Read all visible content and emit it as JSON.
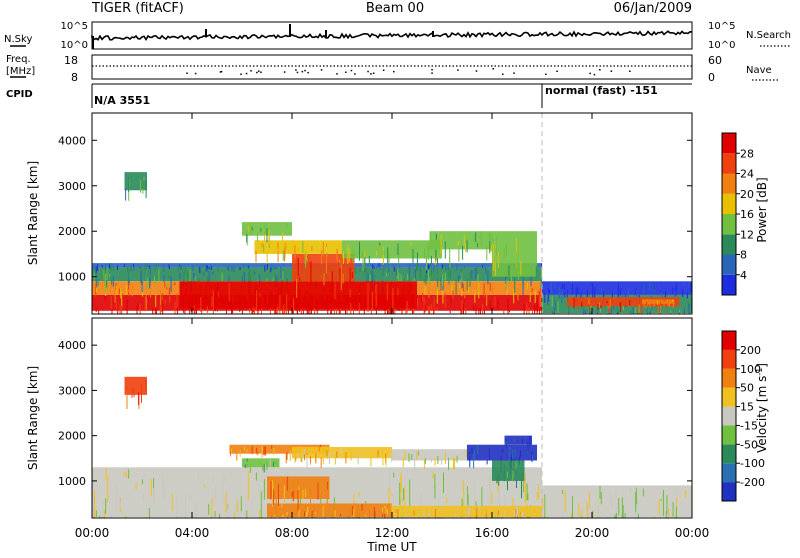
{
  "header": {
    "station": "TIGER (fitACF)",
    "beam": "Beam 00",
    "date": "06/Jan/2009"
  },
  "noise_panel": {
    "left_label": "N.Sky",
    "left_ticks": [
      "10^5",
      "10^0"
    ],
    "right_label": "N.Search",
    "right_ticks": [
      "10^5",
      "10^0"
    ]
  },
  "freq_panel": {
    "left_label_line1": "Freq.",
    "left_label_line2": "[MHz]",
    "left_ticks": [
      "18",
      "8"
    ],
    "right_label": "Nave",
    "right_ticks": [
      "60",
      "0"
    ]
  },
  "cpid_panel": {
    "label": "CPID",
    "segments": [
      {
        "text": "N/A 3551",
        "start_hour": 0
      },
      {
        "text": "normal (fast) -151",
        "start_hour": 18.0
      }
    ]
  },
  "time_axis": {
    "label": "Time UT",
    "ticks": [
      "00:00",
      "04:00",
      "08:00",
      "12:00",
      "16:00",
      "20:00",
      "00:00"
    ],
    "tick_hours": [
      0,
      4,
      8,
      12,
      16,
      20,
      24
    ],
    "range_hours": [
      0,
      24
    ]
  },
  "range_axis": {
    "label": "Slant Range [km]",
    "ticks": [
      "1000",
      "2000",
      "3000",
      "4000"
    ],
    "tick_values": [
      1000,
      2000,
      3000,
      4000
    ],
    "range_km": [
      180,
      4600
    ]
  },
  "mode_change_hour": 18.0,
  "power_scale": {
    "title": "Power [dB]",
    "labels": [
      "4",
      "8",
      "12",
      "16",
      "20",
      "24",
      "28"
    ],
    "colors": [
      "#1c2de0",
      "#2a66b8",
      "#2a8a5a",
      "#70c040",
      "#e8c000",
      "#f08010",
      "#f04010",
      "#e00000"
    ]
  },
  "velocity_scale": {
    "title_main": "Velocity [m s",
    "title_sup": "-1",
    "title_end": "]",
    "labels": [
      "200",
      "100",
      "50",
      "15",
      "-15",
      "-50",
      "-100",
      "-200"
    ],
    "colors": [
      "#2030c0",
      "#2a70b0",
      "#2a8a5a",
      "#70c040",
      "#c8c8c0",
      "#f0c020",
      "#f08010",
      "#f04010",
      "#e00000"
    ]
  },
  "chart_data": [
    {
      "type": "heatmap",
      "name": "power",
      "x_unit": "hours UT",
      "y_unit": "km",
      "xlim": [
        0,
        24
      ],
      "ylim": [
        180,
        4600
      ],
      "regions": [
        {
          "x": [
            0.0,
            18.0
          ],
          "y": [
            250,
            600
          ],
          "level": 7
        },
        {
          "x": [
            0.0,
            18.0
          ],
          "y": [
            600,
            900
          ],
          "level": 5
        },
        {
          "x": [
            0.0,
            18.0
          ],
          "y": [
            900,
            1200
          ],
          "level": 2
        },
        {
          "x": [
            0.0,
            18.0
          ],
          "y": [
            1200,
            1300
          ],
          "level": 1
        },
        {
          "x": [
            3.5,
            13.0
          ],
          "y": [
            300,
            900
          ],
          "level": 7
        },
        {
          "x": [
            8.0,
            10.5
          ],
          "y": [
            900,
            1500
          ],
          "level": 6
        },
        {
          "x": [
            6.5,
            10.0
          ],
          "y": [
            1500,
            1800
          ],
          "level": 4
        },
        {
          "x": [
            10.0,
            14.0
          ],
          "y": [
            1400,
            1800
          ],
          "level": 3
        },
        {
          "x": [
            6.0,
            8.0
          ],
          "y": [
            1900,
            2200
          ],
          "level": 3
        },
        {
          "x": [
            16.0,
            17.8
          ],
          "y": [
            1000,
            2000
          ],
          "level": 3
        },
        {
          "x": [
            1.3,
            2.2
          ],
          "y": [
            2900,
            3300
          ],
          "level": 2
        },
        {
          "x": [
            13.5,
            16.0
          ],
          "y": [
            1600,
            2000
          ],
          "level": 3
        },
        {
          "x": [
            18.0,
            24.0
          ],
          "y": [
            200,
            600
          ],
          "level": 2
        },
        {
          "x": [
            18.0,
            24.0
          ],
          "y": [
            600,
            900
          ],
          "level": 0
        },
        {
          "x": [
            19.0,
            23.5
          ],
          "y": [
            350,
            550
          ],
          "level": 6
        },
        {
          "x": [
            22.0,
            23.3
          ],
          "y": [
            400,
            500
          ],
          "level": 5
        }
      ]
    },
    {
      "type": "heatmap",
      "name": "velocity",
      "x_unit": "hours UT",
      "y_unit": "km",
      "xlim": [
        0,
        24
      ],
      "ylim": [
        180,
        4600
      ],
      "regions": [
        {
          "x": [
            0.0,
            18.0
          ],
          "y": [
            200,
            1300
          ],
          "level": 4
        },
        {
          "x": [
            18.0,
            24.0
          ],
          "y": [
            200,
            900
          ],
          "level": 4
        },
        {
          "x": [
            7.0,
            12.0
          ],
          "y": [
            200,
            500
          ],
          "level": 6
        },
        {
          "x": [
            12.0,
            18.0
          ],
          "y": [
            200,
            450
          ],
          "level": 5
        },
        {
          "x": [
            7.0,
            9.5
          ],
          "y": [
            600,
            1100
          ],
          "level": 6
        },
        {
          "x": [
            5.5,
            9.5
          ],
          "y": [
            1600,
            1800
          ],
          "level": 6
        },
        {
          "x": [
            8.0,
            12.0
          ],
          "y": [
            1500,
            1750
          ],
          "level": 5
        },
        {
          "x": [
            12.0,
            15.0
          ],
          "y": [
            1450,
            1700
          ],
          "level": 4
        },
        {
          "x": [
            15.0,
            17.8
          ],
          "y": [
            1450,
            1800
          ],
          "level": 0
        },
        {
          "x": [
            16.5,
            17.6
          ],
          "y": [
            1800,
            2000
          ],
          "level": 0
        },
        {
          "x": [
            16.0,
            17.3
          ],
          "y": [
            1000,
            1450
          ],
          "level": 2
        },
        {
          "x": [
            1.3,
            2.2
          ],
          "y": [
            2900,
            3300
          ],
          "level": 7
        },
        {
          "x": [
            6.0,
            7.5
          ],
          "y": [
            1300,
            1500
          ],
          "level": 3
        }
      ]
    }
  ]
}
